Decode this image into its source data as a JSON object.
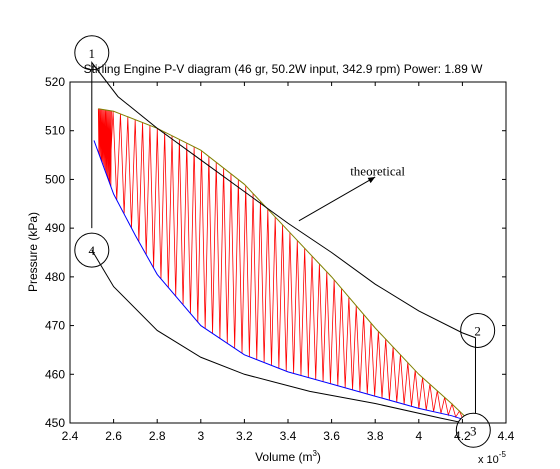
{
  "chart_data": {
    "type": "line",
    "title": "Stirling Engine P-V diagram (46 gr, 50.2W input, 342.9 rpm) Power: 1.89 W",
    "xlabel": "Volume (m",
    "xlabel_sup": "3",
    "xlabel_close": ")",
    "ylabel": "Pressure (kPa)",
    "xlim": [
      2.4,
      4.4
    ],
    "ylim": [
      450,
      520
    ],
    "x_multiplier_label": "x 10",
    "x_multiplier_exp": "-5",
    "x_ticks": [
      2.4,
      2.6,
      2.8,
      3,
      3.2,
      3.4,
      3.6,
      3.8,
      4,
      4.2,
      4.4
    ],
    "x_tick_labels": [
      "2.4",
      "2.6",
      "2.8",
      "3",
      "3.2",
      "3.4",
      "3.6",
      "3.8",
      "4",
      "4.2",
      "4.4"
    ],
    "y_ticks": [
      450,
      460,
      470,
      480,
      490,
      500,
      510,
      520
    ],
    "y_tick_labels": [
      "450",
      "460",
      "470",
      "480",
      "490",
      "500",
      "510",
      "520"
    ],
    "grid": false,
    "series": [
      {
        "color": "#808000",
        "x": [
          2.53,
          2.6,
          2.8,
          3.0,
          3.2,
          3.4,
          3.6,
          3.8,
          4.0,
          4.15,
          4.22
        ],
        "y": [
          514.5,
          514.0,
          510.5,
          506.0,
          499.0,
          489.5,
          480.0,
          469.5,
          460.0,
          454.0,
          451.0
        ]
      },
      {
        "color": "#0000ff",
        "x": [
          2.51,
          2.6,
          2.7,
          2.8,
          3.0,
          3.2,
          3.4,
          3.6,
          3.8,
          4.0,
          4.15,
          4.22
        ],
        "y": [
          508.0,
          497.0,
          488.5,
          480.5,
          470.0,
          464.0,
          460.5,
          458.0,
          455.5,
          453.0,
          451.5,
          450.5
        ]
      },
      {
        "color": "#000000",
        "x": [
          2.5,
          2.5,
          2.62,
          2.8,
          3.0,
          3.2,
          3.4,
          3.6,
          3.8,
          4.0,
          4.2,
          4.26,
          4.26,
          4.1,
          3.8,
          3.5,
          3.2,
          3.0,
          2.8,
          2.6,
          2.5
        ],
        "y": [
          490.0,
          524.0,
          517.0,
          510.5,
          504.0,
          497.5,
          491.0,
          485.0,
          478.5,
          473.0,
          468.5,
          467.5,
          449.5,
          451.0,
          454.0,
          456.5,
          460.0,
          463.5,
          469.0,
          478.0,
          485.5
        ]
      }
    ],
    "fill_color": "#ff0000",
    "annotations": [
      {
        "text": "1",
        "x": 2.5,
        "y": 526.0
      },
      {
        "text": "2",
        "x": 4.27,
        "y": 469.0
      },
      {
        "text": "3",
        "x": 4.25,
        "y": 448.5
      },
      {
        "text": "4",
        "x": 2.5,
        "y": 485.5
      },
      {
        "text": "theoretical",
        "x": 3.8,
        "y": 500.0
      }
    ]
  }
}
